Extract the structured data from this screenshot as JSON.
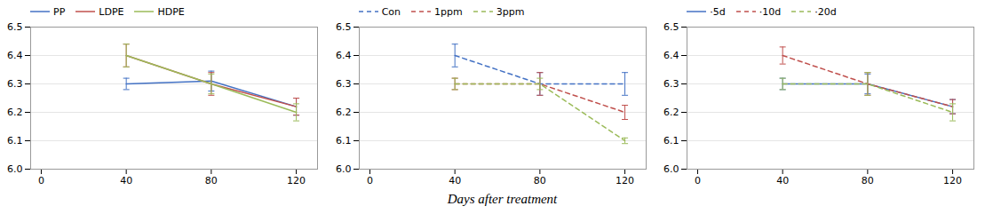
{
  "chart_data": [
    {
      "type": "line",
      "x": [
        40,
        80,
        120
      ],
      "series": [
        {
          "name": "PP",
          "color": "#4472C4",
          "line_style": "solid",
          "values": [
            6.3,
            6.31,
            6.22
          ],
          "yerr": [
            0.02,
            0.035,
            0.03
          ]
        },
        {
          "name": "LDPE",
          "color": "#C0504D",
          "line_style": "solid",
          "values": [
            6.4,
            6.3,
            6.22
          ],
          "yerr": [
            0.04,
            0.04,
            0.03
          ]
        },
        {
          "name": "HDPE",
          "color": "#9BBB59",
          "line_style": "solid",
          "values": [
            6.4,
            6.3,
            6.2
          ],
          "yerr": [
            0.04,
            0.035,
            0.03
          ]
        }
      ],
      "xlim": [
        -5,
        130
      ],
      "xticks": [
        0,
        40,
        80,
        120
      ],
      "ylim": [
        6.0,
        6.5
      ],
      "yticks": [
        {
          "value": 6.0,
          "label": "6.0"
        },
        6.1,
        6.2,
        6.3,
        6.4,
        6.5
      ],
      "grid": "y",
      "legend": "upper left"
    },
    {
      "type": "line",
      "x": [
        40,
        80,
        120
      ],
      "xlabel": "Days after treatment",
      "series": [
        {
          "name": "Con",
          "color": "#4472C4",
          "line_style": "dashed",
          "values": [
            6.4,
            6.3,
            6.3
          ],
          "yerr": [
            0.04,
            0.04,
            0.04
          ]
        },
        {
          "name": "1ppm",
          "color": "#C0504D",
          "line_style": "dashed",
          "values": [
            6.3,
            6.3,
            6.2
          ],
          "yerr": [
            0.02,
            0.04,
            0.025
          ]
        },
        {
          "name": "3ppm",
          "color": "#9BBB59",
          "line_style": "dashed",
          "values": [
            6.3,
            6.3,
            6.1
          ],
          "yerr": [
            0.02,
            0.02,
            0.01
          ]
        }
      ],
      "xlim": [
        -5,
        130
      ],
      "xticks": [
        0,
        40,
        80,
        120
      ],
      "ylim": [
        6.0,
        6.5
      ],
      "yticks": [
        {
          "value": 6.0,
          "label": "6.0"
        },
        6.1,
        6.2,
        6.3,
        6.4,
        6.5
      ],
      "grid": "y",
      "legend": "upper left"
    },
    {
      "type": "line",
      "x": [
        40,
        80,
        120
      ],
      "series": [
        {
          "name": "·5d",
          "color": "#4472C4",
          "line_style": "solid",
          "values": [
            6.3,
            6.3,
            6.22
          ],
          "yerr": [
            0.02,
            0.035,
            0.025
          ]
        },
        {
          "name": "·10d",
          "color": "#C0504D",
          "line_style": "dashed",
          "values": [
            6.4,
            6.3,
            6.22
          ],
          "yerr": [
            0.03,
            0.04,
            0.025
          ]
        },
        {
          "name": "·20d",
          "color": "#9BBB59",
          "line_style": "dashed",
          "values": [
            6.3,
            6.3,
            6.2
          ],
          "yerr": [
            0.02,
            0.04,
            0.03
          ]
        }
      ],
      "xlim": [
        -5,
        130
      ],
      "xticks": [
        0,
        40,
        80,
        120
      ],
      "ylim": [
        6.0,
        6.5
      ],
      "yticks": [
        {
          "value": 6.0,
          "label": "6.0"
        },
        6.1,
        6.2,
        6.3,
        6.4,
        6.5
      ],
      "grid": "y",
      "legend": "upper left"
    }
  ]
}
